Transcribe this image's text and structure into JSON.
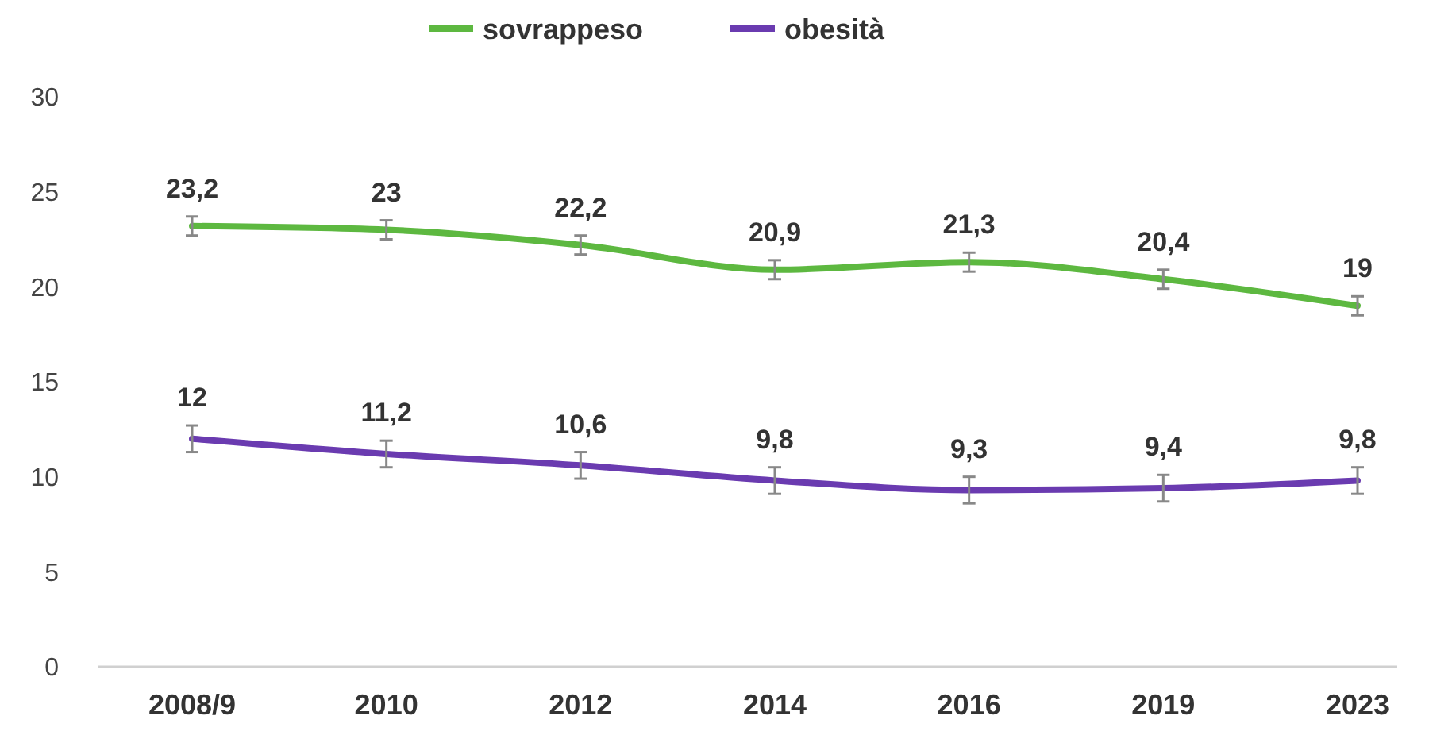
{
  "chart_data": {
    "type": "line",
    "categories": [
      "2008/9",
      "2010",
      "2012",
      "2014",
      "2016",
      "2019",
      "2023"
    ],
    "ylim": [
      0,
      30
    ],
    "yticks": [
      0,
      5,
      10,
      15,
      20,
      25,
      30
    ],
    "grid": false,
    "legend": "top",
    "marker": "none",
    "line_style": "solid",
    "series": [
      {
        "name": "sovrappeso",
        "color": "#5db840",
        "values": [
          23.2,
          23,
          22.2,
          20.9,
          21.3,
          20.4,
          19
        ],
        "errors": [
          0.5,
          0.5,
          0.5,
          0.5,
          0.5,
          0.5,
          0.5
        ],
        "value_labels": [
          "23,2",
          "23",
          "22,2",
          "20,9",
          "21,3",
          "20,4",
          "19"
        ]
      },
      {
        "name": "obesità",
        "color": "#6a3bb0",
        "values": [
          12,
          11.2,
          10.6,
          9.8,
          9.3,
          9.4,
          9.8
        ],
        "errors": [
          0.7,
          0.7,
          0.7,
          0.7,
          0.7,
          0.7,
          0.7
        ],
        "value_labels": [
          "12",
          "11,2",
          "10,6",
          "9,8",
          "9,3",
          "9,4",
          "9,8"
        ]
      }
    ]
  }
}
